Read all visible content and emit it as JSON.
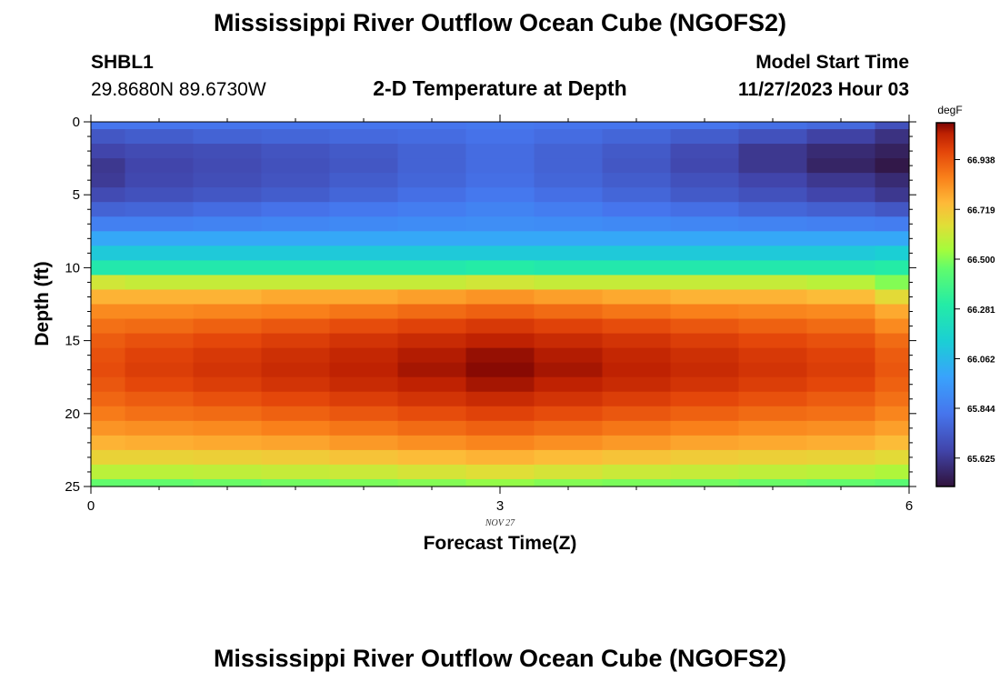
{
  "header": {
    "title": "Mississippi River Outflow Ocean Cube (NGOFS2)",
    "station_id": "SHBL1",
    "coordinates": "29.8680N  89.6730W",
    "plot_title": "2-D Temperature at Depth",
    "model_start_label": "Model Start Time",
    "model_start_value": "11/27/2023 Hour 03"
  },
  "footer": {
    "title": "Mississippi River Outflow Ocean Cube (NGOFS2)"
  },
  "chart_data": {
    "type": "heatmap",
    "title": "2-D Temperature at Depth",
    "xlabel": "Forecast Time(Z)",
    "ylabel": "Depth (ft)",
    "x_ticks": [
      "0",
      "3",
      "6"
    ],
    "x_date_label": "NOV 27",
    "y_ticks": [
      "0",
      "5",
      "10",
      "15",
      "20",
      "25"
    ],
    "xlim": [
      0,
      6
    ],
    "ylim": [
      0,
      25
    ],
    "y_inverted": true,
    "colorbar": {
      "unit": "degF",
      "range": [
        65.5,
        67.1
      ],
      "ticks": [
        "66.938",
        "66.719",
        "66.500",
        "66.281",
        "66.062",
        "65.844",
        "65.625"
      ]
    },
    "x_centers": [
      0,
      0.5,
      1,
      1.5,
      2,
      2.5,
      3,
      3.5,
      4,
      4.5,
      5,
      5.5,
      6
    ],
    "depth_rows": [
      0,
      1,
      2,
      3,
      4,
      5,
      6,
      7,
      8,
      9,
      10,
      11,
      12,
      13,
      14,
      15,
      16,
      17,
      18,
      19,
      20,
      21,
      22,
      23,
      24,
      25
    ],
    "values": [
      [
        65.82,
        65.82,
        65.82,
        65.82,
        65.82,
        65.82,
        65.83,
        65.82,
        65.82,
        65.82,
        65.8,
        65.78,
        65.7
      ],
      [
        65.72,
        65.74,
        65.76,
        65.77,
        65.78,
        65.79,
        65.81,
        65.79,
        65.77,
        65.74,
        65.7,
        65.65,
        65.6
      ],
      [
        65.66,
        65.68,
        65.69,
        65.71,
        65.73,
        65.76,
        65.79,
        65.76,
        65.73,
        65.68,
        65.62,
        65.58,
        65.55
      ],
      [
        65.62,
        65.66,
        65.68,
        65.7,
        65.72,
        65.76,
        65.79,
        65.76,
        65.72,
        65.67,
        65.62,
        65.56,
        65.52
      ],
      [
        65.63,
        65.67,
        65.69,
        65.71,
        65.74,
        65.77,
        65.8,
        65.77,
        65.74,
        65.7,
        65.66,
        65.62,
        65.58
      ],
      [
        65.68,
        65.7,
        65.72,
        65.74,
        65.77,
        65.8,
        65.83,
        65.8,
        65.77,
        65.73,
        65.7,
        65.66,
        65.62
      ],
      [
        65.76,
        65.77,
        65.79,
        65.81,
        65.83,
        65.85,
        65.87,
        65.85,
        65.82,
        65.8,
        65.77,
        65.75,
        65.72
      ],
      [
        65.86,
        65.86,
        65.87,
        65.88,
        65.89,
        65.9,
        65.91,
        65.9,
        65.89,
        65.88,
        65.87,
        65.86,
        65.85
      ],
      [
        66.0,
        66.0,
        66.0,
        66.0,
        66.0,
        66.0,
        66.0,
        66.0,
        66.0,
        66.0,
        66.0,
        66.0,
        66.0
      ],
      [
        66.12,
        66.12,
        66.12,
        66.12,
        66.12,
        66.12,
        66.12,
        66.12,
        66.12,
        66.12,
        66.12,
        66.12,
        66.14
      ],
      [
        66.28,
        66.28,
        66.28,
        66.28,
        66.28,
        66.28,
        66.3,
        66.28,
        66.28,
        66.28,
        66.28,
        66.28,
        66.3
      ],
      [
        66.62,
        66.6,
        66.6,
        66.6,
        66.6,
        66.6,
        66.62,
        66.6,
        66.6,
        66.6,
        66.6,
        66.58,
        66.5
      ],
      [
        66.76,
        66.76,
        66.76,
        66.78,
        66.78,
        66.8,
        66.82,
        66.8,
        66.78,
        66.76,
        66.76,
        66.74,
        66.66
      ],
      [
        66.84,
        66.84,
        66.85,
        66.86,
        66.88,
        66.9,
        66.92,
        66.9,
        66.88,
        66.86,
        66.85,
        66.84,
        66.78
      ],
      [
        66.89,
        66.9,
        66.92,
        66.94,
        66.96,
        66.98,
        67.0,
        66.98,
        66.96,
        66.94,
        66.92,
        66.9,
        66.84
      ],
      [
        66.93,
        66.95,
        66.97,
        66.99,
        67.01,
        67.03,
        67.05,
        67.03,
        67.01,
        66.99,
        66.97,
        66.95,
        66.9
      ],
      [
        66.95,
        66.98,
        67.0,
        67.02,
        67.04,
        67.06,
        67.08,
        67.06,
        67.04,
        67.02,
        67.0,
        66.98,
        66.93
      ],
      [
        66.96,
        66.99,
        67.01,
        67.03,
        67.05,
        67.07,
        67.09,
        67.07,
        67.05,
        67.03,
        67.01,
        66.99,
        66.94
      ],
      [
        66.94,
        66.97,
        66.99,
        67.01,
        67.03,
        67.05,
        67.07,
        67.05,
        67.03,
        67.01,
        66.99,
        66.97,
        66.92
      ],
      [
        66.91,
        66.93,
        66.95,
        66.97,
        66.99,
        67.01,
        67.03,
        67.01,
        66.99,
        66.97,
        66.95,
        66.93,
        66.89
      ],
      [
        66.87,
        66.89,
        66.9,
        66.92,
        66.94,
        66.96,
        66.98,
        66.96,
        66.94,
        66.92,
        66.9,
        66.89,
        66.85
      ],
      [
        66.82,
        66.83,
        66.84,
        66.86,
        66.88,
        66.9,
        66.92,
        66.9,
        66.88,
        66.86,
        66.84,
        66.83,
        66.8
      ],
      [
        66.76,
        66.77,
        66.78,
        66.79,
        66.81,
        66.83,
        66.85,
        66.83,
        66.81,
        66.79,
        66.78,
        66.77,
        66.74
      ],
      [
        66.68,
        66.68,
        66.69,
        66.7,
        66.72,
        66.74,
        66.76,
        66.74,
        66.72,
        66.7,
        66.69,
        66.68,
        66.66
      ],
      [
        66.58,
        66.58,
        66.59,
        66.6,
        66.61,
        66.63,
        66.65,
        66.63,
        66.61,
        66.6,
        66.59,
        66.58,
        66.56
      ],
      [
        66.46,
        66.46,
        66.47,
        66.48,
        66.49,
        66.5,
        66.52,
        66.5,
        66.49,
        66.48,
        66.47,
        66.46,
        66.44
      ]
    ]
  }
}
